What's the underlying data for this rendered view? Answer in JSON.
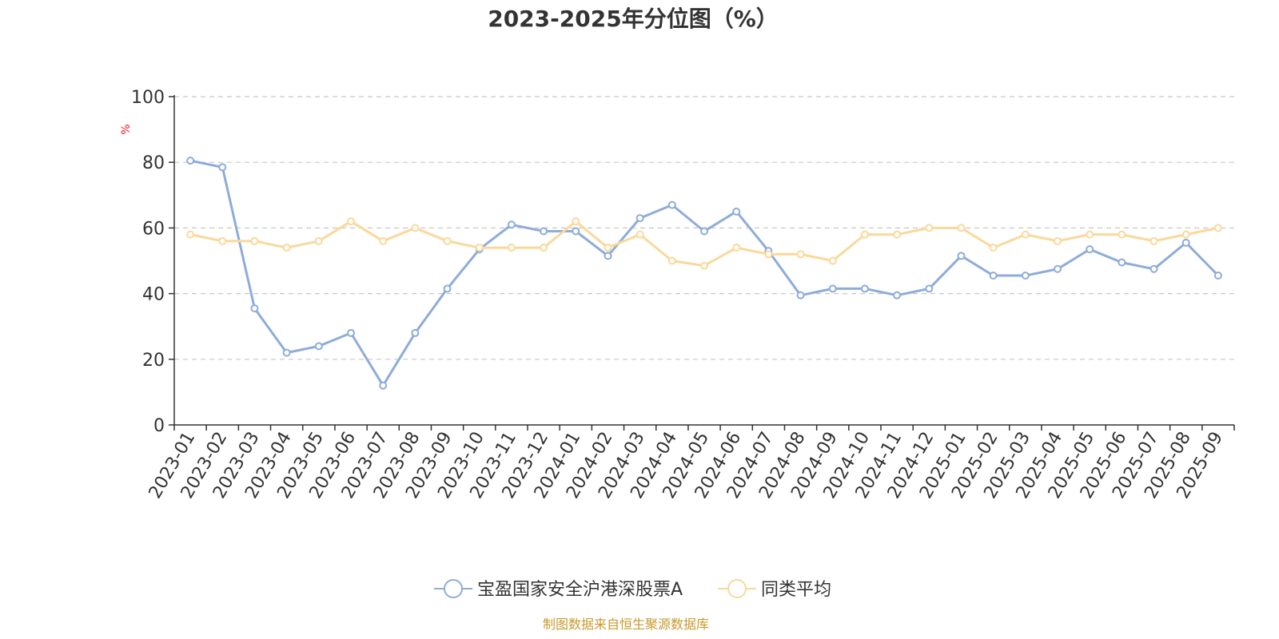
{
  "chart_data": {
    "type": "line",
    "title": "2023-2025年分位图（%）",
    "ylabel": "%",
    "ylim": [
      0,
      100
    ],
    "yticks": [
      0,
      20,
      40,
      60,
      80,
      100
    ],
    "grid": true,
    "legend_position": "bottom-center",
    "categories": [
      "2023-01",
      "2023-02",
      "2023-03",
      "2023-04",
      "2023-05",
      "2023-06",
      "2023-07",
      "2023-08",
      "2023-09",
      "2023-10",
      "2023-11",
      "2023-12",
      "2024-01",
      "2024-02",
      "2024-03",
      "2024-04",
      "2024-05",
      "2024-06",
      "2024-07",
      "2024-08",
      "2024-09",
      "2024-10",
      "2024-11",
      "2024-12",
      "2025-01",
      "2025-02",
      "2025-03",
      "2025-04",
      "2025-05",
      "2025-06",
      "2025-07",
      "2025-08",
      "2025-09"
    ],
    "series": [
      {
        "name": "宝盈国家安全沪港深股票A",
        "color": "#8eacd9",
        "values": [
          80.5,
          78.5,
          35.5,
          22,
          24,
          28,
          12,
          28,
          41.5,
          53.5,
          61,
          59,
          59,
          51.5,
          63,
          67,
          59,
          65,
          53,
          39.5,
          41.5,
          41.5,
          39.5,
          41.5,
          51.5,
          45.5,
          45.5,
          47.5,
          53.5,
          49.5,
          47.5,
          55.5,
          45.5
        ]
      },
      {
        "name": "同类平均",
        "color": "#fbd89a",
        "values": [
          58,
          56,
          56,
          54,
          56,
          62,
          56,
          60,
          56,
          54,
          54,
          54,
          62,
          54,
          58,
          50,
          48.5,
          54,
          52,
          52,
          50,
          58,
          58,
          60,
          60,
          54,
          58,
          56,
          58,
          58,
          56,
          58,
          60
        ]
      }
    ],
    "unit_color": "#e02020"
  },
  "source": {
    "text": "制图数据来自恒生聚源数据库",
    "color": "#c99a2e"
  }
}
